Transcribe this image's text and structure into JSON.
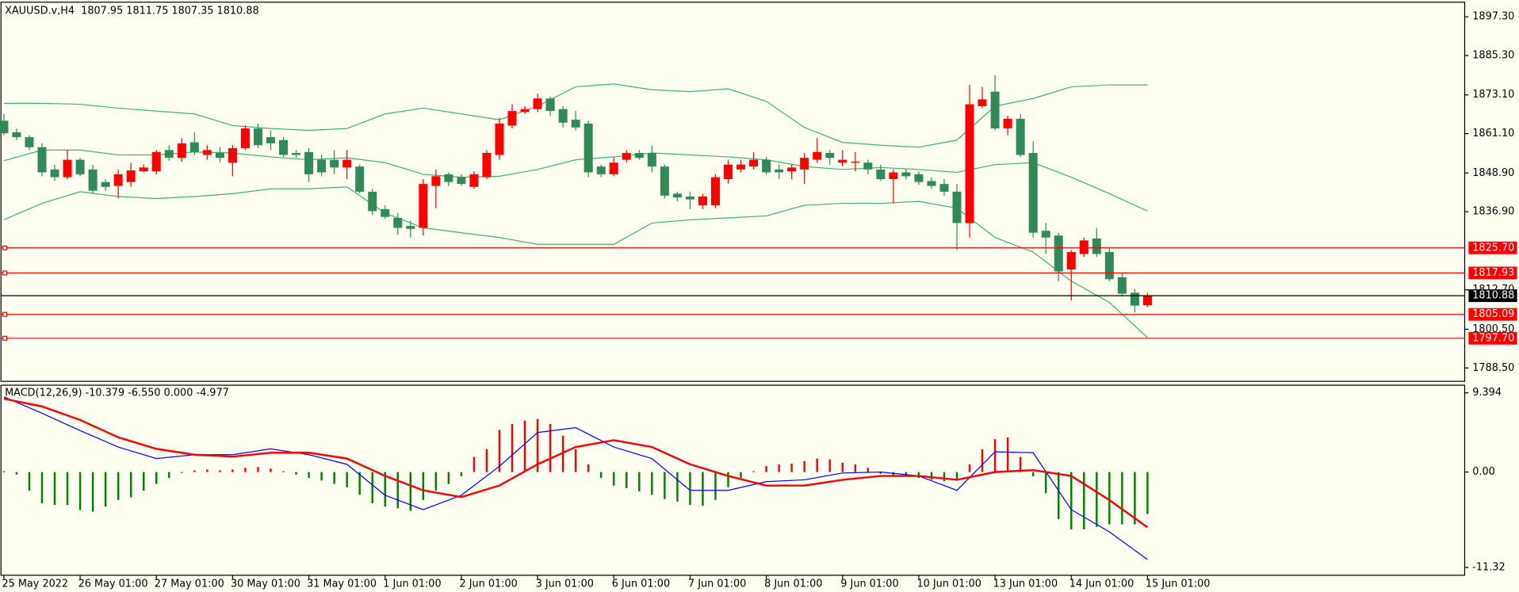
{
  "chart_data": [
    {
      "type": "candlestick",
      "title": "XAUUSD.v,H4  1807.95 1811.75 1807.35 1810.88",
      "xlim": [
        -0.23,
        114.96
      ],
      "ylim": [
        1784.35,
        1901.82
      ],
      "yticks": [
        {
          "value": 1897.3,
          "label": "1897.30"
        },
        {
          "value": 1885.3,
          "label": "1885.30"
        },
        {
          "value": 1873.1,
          "label": "1873.10"
        },
        {
          "value": 1861.1,
          "label": "1861.10"
        },
        {
          "value": 1848.9,
          "label": "1848.90"
        },
        {
          "value": 1836.9,
          "label": "1836.90"
        },
        {
          "value": 1812.7,
          "label": "1812.70"
        },
        {
          "value": 1800.5,
          "label": "1800.50"
        },
        {
          "value": 1788.5,
          "label": "1788.50"
        }
      ],
      "up_color": "#ff0000",
      "down_color": "#2e8b57",
      "open": [
        1865.1,
        1861.5,
        1860.0,
        1856.9,
        1850.0,
        1847.6,
        1853.0,
        1850.0,
        1846.1,
        1844.9,
        1846.1,
        1849.4,
        1849.4,
        1856.0,
        1853.6,
        1858.4,
        1854.5,
        1855.1,
        1852.1,
        1856.6,
        1862.7,
        1860.0,
        1859.1,
        1855.1,
        1855.4,
        1853.0,
        1853.0,
        1850.6,
        1850.9,
        1843.1,
        1837.7,
        1835.0,
        1832.5,
        1831.9,
        1844.9,
        1848.5,
        1847.6,
        1844.6,
        1847.6,
        1854.5,
        1863.6,
        1867.8,
        1868.7,
        1872.0,
        1868.7,
        1865.4,
        1864.2,
        1850.9,
        1848.5,
        1853.0,
        1855.1,
        1855.1,
        1850.9,
        1842.5,
        1841.6,
        1838.9,
        1838.9,
        1847.0,
        1850.0,
        1850.9,
        1853.0,
        1850.0,
        1849.4,
        1850.0,
        1853.0,
        1855.1,
        1852.1,
        1852.1,
        1852.1,
        1850.0,
        1847.0,
        1849.1,
        1848.5,
        1846.4,
        1845.5,
        1843.1,
        1833.4,
        1869.6,
        1874.1,
        1862.7,
        1865.7,
        1855.1,
        1831.0,
        1829.5,
        1819.0,
        1823.8,
        1828.6,
        1824.4,
        1816.6,
        1811.8,
        1807.95
      ],
      "high": [
        1867.2,
        1862.7,
        1860.6,
        1858.1,
        1851.5,
        1856.0,
        1853.6,
        1851.5,
        1847.0,
        1850.0,
        1852.1,
        1851.5,
        1856.0,
        1857.5,
        1859.7,
        1861.5,
        1857.5,
        1856.9,
        1857.5,
        1863.6,
        1864.2,
        1862.1,
        1860.0,
        1856.0,
        1856.6,
        1854.5,
        1856.0,
        1856.0,
        1851.5,
        1844.0,
        1838.9,
        1836.5,
        1834.1,
        1847.0,
        1850.0,
        1849.1,
        1848.5,
        1849.4,
        1856.0,
        1866.0,
        1870.2,
        1869.6,
        1873.5,
        1872.6,
        1869.6,
        1868.1,
        1865.1,
        1851.5,
        1853.9,
        1856.0,
        1856.0,
        1857.5,
        1851.5,
        1843.1,
        1843.1,
        1842.5,
        1848.5,
        1853.0,
        1853.0,
        1855.4,
        1853.9,
        1851.5,
        1851.5,
        1855.1,
        1859.7,
        1856.0,
        1856.0,
        1855.4,
        1853.0,
        1851.5,
        1850.0,
        1850.0,
        1849.4,
        1847.6,
        1847.0,
        1845.5,
        1876.2,
        1875.6,
        1879.2,
        1866.6,
        1867.2,
        1858.7,
        1833.4,
        1830.4,
        1825.0,
        1828.9,
        1831.9,
        1825.9,
        1817.8,
        1813.0,
        1811.75
      ],
      "low": [
        1860.6,
        1859.1,
        1856.0,
        1847.9,
        1846.4,
        1847.0,
        1847.9,
        1842.5,
        1843.4,
        1841.0,
        1844.6,
        1849.1,
        1848.5,
        1852.7,
        1852.4,
        1854.5,
        1853.0,
        1852.1,
        1847.9,
        1856.0,
        1856.6,
        1856.0,
        1853.9,
        1853.6,
        1846.1,
        1847.9,
        1848.5,
        1847.0,
        1842.5,
        1835.9,
        1834.7,
        1829.8,
        1828.9,
        1829.5,
        1838.0,
        1844.9,
        1844.9,
        1844.0,
        1847.0,
        1853.0,
        1862.7,
        1867.2,
        1867.8,
        1866.6,
        1863.0,
        1862.1,
        1847.6,
        1847.6,
        1847.9,
        1852.1,
        1853.0,
        1849.1,
        1841.0,
        1840.1,
        1837.7,
        1837.7,
        1838.0,
        1845.5,
        1849.1,
        1850.0,
        1848.5,
        1847.0,
        1847.0,
        1845.5,
        1852.1,
        1851.5,
        1850.9,
        1849.4,
        1848.5,
        1846.4,
        1839.5,
        1847.0,
        1845.2,
        1844.0,
        1841.9,
        1825.0,
        1828.9,
        1869.0,
        1862.1,
        1860.6,
        1853.9,
        1828.9,
        1823.8,
        1815.4,
        1809.4,
        1822.9,
        1822.9,
        1815.4,
        1810.6,
        1805.7,
        1807.35
      ],
      "close": [
        1861.2,
        1860.0,
        1856.9,
        1849.1,
        1847.6,
        1853.0,
        1848.5,
        1843.4,
        1844.6,
        1848.5,
        1849.7,
        1850.6,
        1855.4,
        1853.6,
        1858.1,
        1855.4,
        1856.0,
        1853.6,
        1856.6,
        1862.7,
        1857.5,
        1858.1,
        1854.5,
        1854.5,
        1848.5,
        1849.1,
        1850.6,
        1853.0,
        1843.1,
        1837.1,
        1835.3,
        1831.9,
        1831.6,
        1845.5,
        1847.9,
        1846.1,
        1845.5,
        1848.5,
        1855.1,
        1864.2,
        1868.1,
        1868.7,
        1872.0,
        1868.1,
        1864.5,
        1863.0,
        1849.1,
        1848.5,
        1852.1,
        1855.1,
        1853.6,
        1850.9,
        1841.9,
        1841.3,
        1840.7,
        1841.6,
        1847.6,
        1851.5,
        1851.5,
        1853.0,
        1849.1,
        1849.1,
        1850.6,
        1853.6,
        1855.4,
        1853.6,
        1853.0,
        1852.4,
        1850.0,
        1847.0,
        1849.1,
        1847.9,
        1846.1,
        1844.9,
        1843.1,
        1833.4,
        1870.2,
        1871.7,
        1862.7,
        1865.7,
        1854.5,
        1830.4,
        1828.9,
        1818.4,
        1824.4,
        1828.0,
        1823.8,
        1816.0,
        1811.5,
        1807.8,
        1810.88
      ],
      "bands": {
        "color": "#3cb371",
        "x": [
          0,
          3,
          6,
          9,
          12,
          15,
          18,
          21,
          24,
          27,
          30,
          33,
          36,
          39,
          42,
          45,
          48,
          51,
          54,
          57,
          60,
          63,
          66,
          69,
          72,
          75,
          78,
          81,
          84,
          87,
          90
        ],
        "series": [
          {
            "values": [
              1870.5,
              1870.5,
              1870.2,
              1869.0,
              1868.1,
              1867.2,
              1863.6,
              1862.7,
              1862.1,
              1862.7,
              1867.2,
              1869.0,
              1867.2,
              1865.4,
              1869.6,
              1875.6,
              1876.5,
              1874.7,
              1874.1,
              1875.0,
              1871.1,
              1863.0,
              1858.4,
              1857.5,
              1856.9,
              1859.1,
              1869.6,
              1872.0,
              1875.6,
              1876.2,
              1876.2
            ]
          },
          {
            "values": [
              1852.7,
              1856.0,
              1856.0,
              1854.5,
              1854.5,
              1855.4,
              1855.1,
              1853.9,
              1853.0,
              1853.6,
              1852.1,
              1848.5,
              1847.6,
              1847.9,
              1850.0,
              1853.0,
              1853.9,
              1855.1,
              1854.5,
              1853.9,
              1853.0,
              1850.9,
              1850.0,
              1850.6,
              1850.0,
              1849.1,
              1851.5,
              1852.1,
              1847.6,
              1842.5,
              1837.1
            ]
          },
          {
            "values": [
              1834.4,
              1839.5,
              1843.1,
              1841.6,
              1841.0,
              1841.6,
              1842.5,
              1844.0,
              1844.0,
              1844.6,
              1836.5,
              1831.9,
              1830.4,
              1828.9,
              1826.8,
              1826.8,
              1826.8,
              1833.4,
              1834.4,
              1835.0,
              1835.6,
              1838.9,
              1839.5,
              1839.5,
              1840.1,
              1838.0,
              1828.9,
              1824.4,
              1815.4,
              1808.8,
              1797.9
            ]
          }
        ]
      },
      "levels": [
        {
          "value": 1825.7,
          "label": "1825.70",
          "color": "#ff0000"
        },
        {
          "value": 1817.93,
          "label": "1817.93",
          "color": "#ff0000"
        },
        {
          "value": 1810.88,
          "label": "1810.88",
          "color": "#000000"
        },
        {
          "value": 1805.09,
          "label": "1805.09",
          "color": "#ff0000"
        },
        {
          "value": 1797.7,
          "label": "1797.70",
          "color": "#ff0000"
        }
      ]
    },
    {
      "type": "macd",
      "title": "MACD(12,26,9) -10.379 -6.550 0.000 -4.977",
      "xlim": [
        -0.23,
        114.96
      ],
      "ylim": [
        -12.24,
        10.3
      ],
      "yticks": [
        9.394,
        {
          "value": 0,
          "label": "0.00"
        },
        -11.32
      ],
      "xticks": [
        {
          "value": 0,
          "label": "25 May 2022"
        },
        {
          "value": 6,
          "label": "26 May 01:00"
        },
        {
          "value": 12,
          "label": "27 May 01:00"
        },
        {
          "value": 18,
          "label": "30 May 01:00"
        },
        {
          "value": 24,
          "label": "31 May 01:00"
        },
        {
          "value": 30,
          "label": "1 Jun 01:00"
        },
        {
          "value": 36,
          "label": "2 Jun 01:00"
        },
        {
          "value": 42,
          "label": "3 Jun 01:00"
        },
        {
          "value": 48,
          "label": "6 Jun 01:00"
        },
        {
          "value": 54,
          "label": "7 Jun 01:00"
        },
        {
          "value": 60,
          "label": "8 Jun 01:00"
        },
        {
          "value": 66,
          "label": "9 Jun 01:00"
        },
        {
          "value": 72,
          "label": "10 Jun 01:00"
        },
        {
          "value": 78,
          "label": "13 Jun 01:00"
        },
        {
          "value": 84,
          "label": "14 Jun 01:00"
        },
        {
          "value": 90,
          "label": "15 Jun 01:00"
        }
      ],
      "histogram": {
        "positive_color": "#ff0000",
        "negative_color": "#008000",
        "values": [
          0.1,
          -0.3,
          -2.2,
          -3.7,
          -3.9,
          -3.9,
          -4.5,
          -4.7,
          -4.1,
          -3.3,
          -3.0,
          -2.2,
          -1.4,
          -0.7,
          -0.1,
          0.2,
          0.3,
          0.2,
          0.3,
          0.5,
          0.6,
          0.4,
          0.1,
          -0.3,
          -0.7,
          -1.0,
          -1.4,
          -1.8,
          -2.7,
          -3.7,
          -4.1,
          -4.3,
          -4.6,
          -3.3,
          -2.2,
          -1.4,
          -0.5,
          1.8,
          2.7,
          5.0,
          5.7,
          6.1,
          6.3,
          5.7,
          4.3,
          2.7,
          0.9,
          -0.7,
          -1.6,
          -1.9,
          -2.3,
          -2.7,
          -3.2,
          -3.5,
          -3.9,
          -4.0,
          -3.3,
          -1.8,
          -0.7,
          0.1,
          0.7,
          0.9,
          1.0,
          1.3,
          1.6,
          1.5,
          1.1,
          0.9,
          0.5,
          -0.2,
          -0.5,
          -0.5,
          -0.7,
          -0.9,
          -1.1,
          -1.0,
          0.9,
          2.7,
          3.9,
          4.1,
          1.8,
          -0.5,
          -2.5,
          -5.6,
          -6.8,
          -6.8,
          -6.5,
          -6.2,
          -6.2,
          -6.2,
          -4.977
        ]
      },
      "x": [
        0,
        3,
        6,
        9,
        12,
        15,
        18,
        21,
        24,
        27,
        30,
        33,
        36,
        39,
        42,
        45,
        48,
        51,
        54,
        57,
        60,
        63,
        66,
        69,
        72,
        75,
        78,
        81,
        84,
        87,
        90
      ],
      "series": [
        {
          "color": "#0000ff",
          "values": [
            8.92,
            6.98,
            4.92,
            2.97,
            1.6,
            2.06,
            2.06,
            2.75,
            2.06,
            0.92,
            -2.75,
            -4.46,
            -2.75,
            0.69,
            4.69,
            5.26,
            2.97,
            1.6,
            -2.17,
            -2.17,
            -1.14,
            -0.92,
            -0.11,
            0,
            -0.46,
            -2.17,
            2.4,
            2.29,
            -4.46,
            -7.09,
            -10.379
          ]
        },
        {
          "color": "#ff0000",
          "values": [
            8.7,
            7.78,
            6.18,
            4.12,
            2.75,
            2.06,
            1.83,
            2.29,
            2.29,
            1.6,
            -0.46,
            -2.17,
            -2.97,
            -1.6,
            0.92,
            2.97,
            3.78,
            2.97,
            0.92,
            -0.46,
            -1.6,
            -1.6,
            -0.92,
            -0.46,
            -0.46,
            -0.92,
            0,
            0.23,
            -0.46,
            -3.32,
            -6.55
          ]
        }
      ]
    }
  ]
}
